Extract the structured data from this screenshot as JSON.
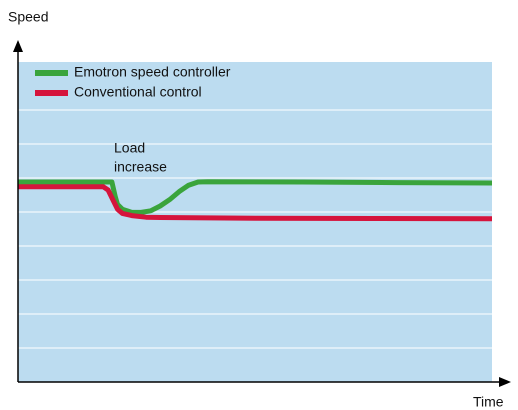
{
  "chart_data": {
    "type": "line",
    "xlabel": "Time",
    "ylabel": "Speed",
    "annotation": [
      "Load",
      "increase"
    ],
    "xlim": [
      0,
      100
    ],
    "ylim": [
      0,
      100
    ],
    "series": [
      {
        "name": "Emotron speed controller",
        "color": "#3aa43c",
        "x": [
          0,
          19.8,
          20.5,
          21,
          22,
          24,
          26,
          28,
          30,
          32,
          34,
          36,
          38,
          40,
          60,
          80,
          100
        ],
        "values": [
          62.5,
          62.5,
          58,
          55.5,
          54,
          53,
          53,
          53.5,
          55,
          57,
          59.5,
          61.5,
          62.5,
          62.6,
          62.5,
          62.3,
          62.2
        ]
      },
      {
        "name": "Conventional control",
        "color": "#d5143c",
        "x": [
          0,
          18,
          19,
          20,
          21,
          22,
          24,
          27,
          30,
          50,
          75,
          100
        ],
        "values": [
          61,
          61,
          60,
          57,
          54,
          52.7,
          52,
          51.5,
          51.4,
          51.2,
          51.1,
          51
        ]
      }
    ]
  }
}
